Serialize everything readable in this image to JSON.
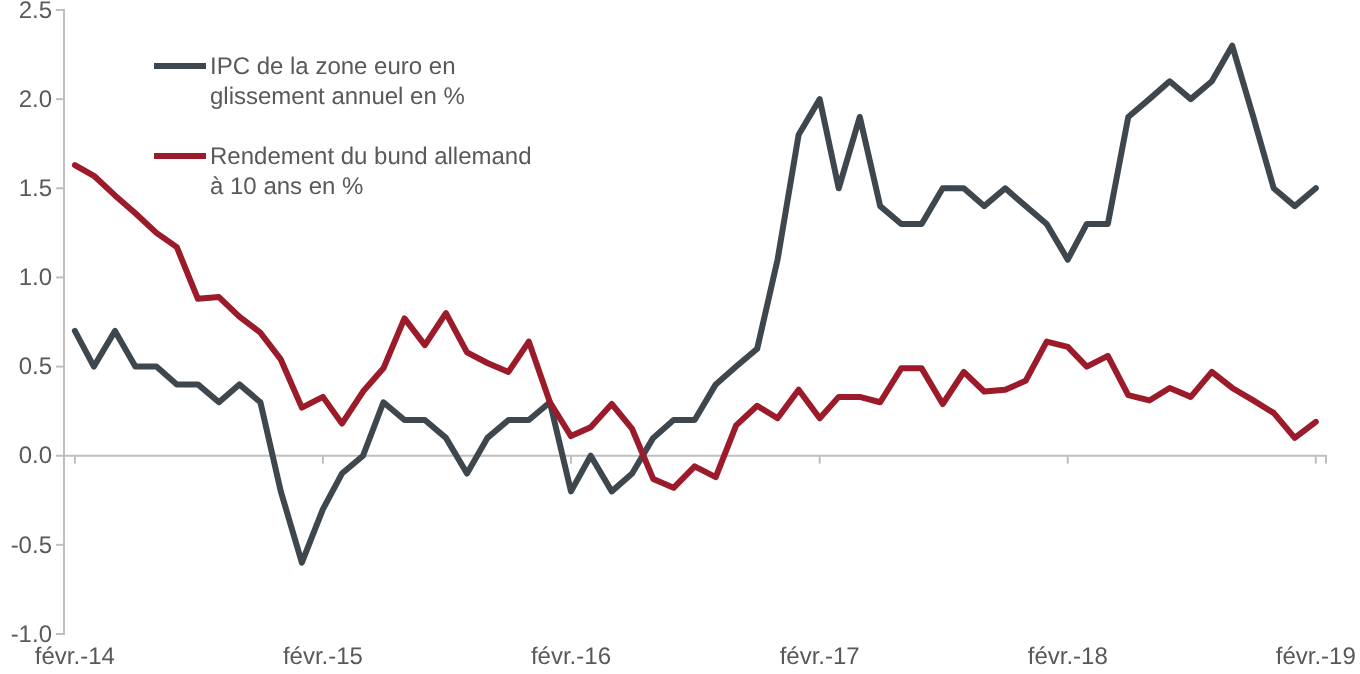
{
  "chart_data": {
    "type": "line",
    "x": [
      "2014-02",
      "2014-03",
      "2014-04",
      "2014-05",
      "2014-06",
      "2014-07",
      "2014-08",
      "2014-09",
      "2014-10",
      "2014-11",
      "2014-12",
      "2015-01",
      "2015-02",
      "2015-03",
      "2015-04",
      "2015-05",
      "2015-06",
      "2015-07",
      "2015-08",
      "2015-09",
      "2015-10",
      "2015-11",
      "2015-12",
      "2016-01",
      "2016-02",
      "2016-03",
      "2016-04",
      "2016-05",
      "2016-06",
      "2016-07",
      "2016-08",
      "2016-09",
      "2016-10",
      "2016-11",
      "2016-12",
      "2017-01",
      "2017-02",
      "2017-03",
      "2017-04",
      "2017-05",
      "2017-06",
      "2017-07",
      "2017-08",
      "2017-09",
      "2017-10",
      "2017-11",
      "2017-12",
      "2018-01",
      "2018-02",
      "2018-03",
      "2018-04",
      "2018-05",
      "2018-06",
      "2018-07",
      "2018-08",
      "2018-09",
      "2018-10",
      "2018-11",
      "2018-12",
      "2019-01",
      "2019-02"
    ],
    "series": [
      {
        "name": "IPC de la zone euro en glissement annuel en %",
        "color": "#3d474d",
        "values": [
          0.7,
          0.5,
          0.7,
          0.5,
          0.5,
          0.4,
          0.4,
          0.3,
          0.4,
          0.3,
          -0.2,
          -0.6,
          -0.3,
          -0.1,
          0.0,
          0.3,
          0.2,
          0.2,
          0.1,
          -0.1,
          0.1,
          0.2,
          0.2,
          0.3,
          -0.2,
          0.0,
          -0.2,
          -0.1,
          0.1,
          0.2,
          0.2,
          0.4,
          0.5,
          0.6,
          1.1,
          1.8,
          2.0,
          1.5,
          1.9,
          1.4,
          1.3,
          1.3,
          1.5,
          1.5,
          1.4,
          1.5,
          1.4,
          1.3,
          1.1,
          1.3,
          1.3,
          1.9,
          2.0,
          2.1,
          2.0,
          2.1,
          2.3,
          1.9,
          1.5,
          1.4,
          1.5
        ]
      },
      {
        "name": "Rendement du bund allemand à 10 ans en %",
        "color": "#9b1b2a",
        "values": [
          1.63,
          1.57,
          1.46,
          1.36,
          1.25,
          1.17,
          0.88,
          0.89,
          0.78,
          0.69,
          0.54,
          0.27,
          0.33,
          0.18,
          0.36,
          0.49,
          0.77,
          0.62,
          0.8,
          0.58,
          0.52,
          0.47,
          0.64,
          0.3,
          0.11,
          0.16,
          0.29,
          0.15,
          -0.13,
          -0.18,
          -0.06,
          -0.12,
          0.17,
          0.28,
          0.21,
          0.37,
          0.21,
          0.33,
          0.33,
          0.3,
          0.49,
          0.49,
          0.29,
          0.47,
          0.36,
          0.37,
          0.42,
          0.64,
          0.61,
          0.5,
          0.56,
          0.34,
          0.31,
          0.38,
          0.33,
          0.47,
          0.38,
          0.31,
          0.24,
          0.1,
          0.19
        ]
      }
    ],
    "xlim": [
      "2014-01-16",
      "2019-02-16"
    ],
    "xticks": [
      {
        "value": "2014-02",
        "label": "févr.-14"
      },
      {
        "value": "2015-02",
        "label": "févr.-15"
      },
      {
        "value": "2016-02",
        "label": "févr.-16"
      },
      {
        "value": "2017-02",
        "label": "févr.-17"
      },
      {
        "value": "2018-02",
        "label": "févr.-18"
      },
      {
        "value": "2019-02",
        "label": "févr.-19"
      }
    ],
    "ylim": [
      -1.0,
      2.5
    ],
    "yticks": [
      {
        "value": -1,
        "label": "-1.0"
      },
      -0.5,
      {
        "value": 0,
        "label": "0.0"
      },
      0.5,
      {
        "value": 1,
        "label": "1.0"
      },
      1.5,
      {
        "value": 2,
        "label": "2.0"
      },
      2.5
    ],
    "legend": "top left",
    "grid": false,
    "marker": "none",
    "line_style": "solid"
  }
}
